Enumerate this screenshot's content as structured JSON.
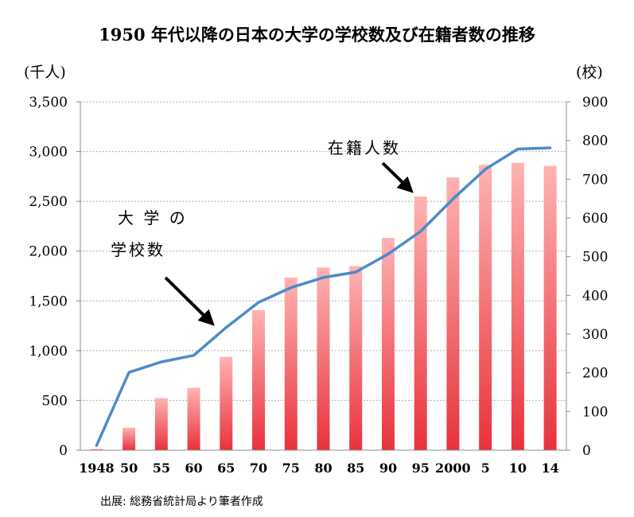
{
  "title": "1950 年代以降の日本の大学の学校数及び在籍者数の推移",
  "left_unit": "(千人)",
  "right_unit": "(校)",
  "source": "出展: 総務省統計局より筆者作成",
  "annotations": {
    "students_label": "在籍人数",
    "schools_label_line1": "大 学 の",
    "schools_label_line2": "学校数"
  },
  "colors": {
    "bar_top": "#ffb3b3",
    "bar_bottom": "#e8323c",
    "line": "#4a8cc9",
    "grid": "#b0b0b0",
    "arrow": "#000000"
  },
  "chart_data": {
    "type": "bar+line",
    "categories": [
      "1948",
      "50",
      "55",
      "60",
      "65",
      "70",
      "75",
      "80",
      "85",
      "90",
      "95",
      "2000",
      "5",
      "10",
      "14"
    ],
    "series": [
      {
        "name": "在籍人数",
        "type": "bar",
        "axis": "left",
        "values": [
          12,
          225,
          523,
          627,
          938,
          1407,
          1734,
          1835,
          1849,
          2133,
          2547,
          2740,
          2866,
          2887,
          2856
        ]
      },
      {
        "name": "大学の学校数",
        "type": "line",
        "axis": "right",
        "values": [
          12,
          201,
          228,
          245,
          317,
          382,
          420,
          446,
          460,
          507,
          565,
          649,
          726,
          778,
          781
        ]
      }
    ],
    "left_axis": {
      "ylim": [
        0,
        3500
      ],
      "ticks": [
        0,
        500,
        1000,
        1500,
        2000,
        2500,
        3000,
        3500
      ],
      "tick_labels": [
        "0",
        "500",
        "1,000",
        "1,500",
        "2,000",
        "2,500",
        "3,000",
        "3,500"
      ]
    },
    "right_axis": {
      "ylim": [
        0,
        900
      ],
      "ticks": [
        0,
        100,
        200,
        300,
        400,
        500,
        600,
        700,
        800,
        900
      ],
      "tick_labels": [
        "0",
        "100",
        "200",
        "300",
        "400",
        "500",
        "600",
        "700",
        "800",
        "900"
      ]
    },
    "grid": true,
    "gridline_style": "dotted"
  }
}
